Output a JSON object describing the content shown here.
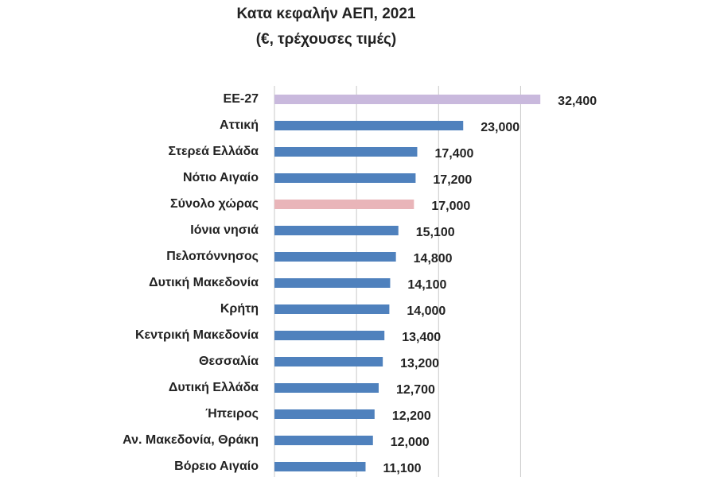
{
  "chart_data": {
    "type": "bar",
    "orientation": "horizontal",
    "title": "Κατα κεφαλήν ΑΕΠ, 2021",
    "subtitle": "(€, τρέχουσες τιμές)",
    "categories": [
      "ΕΕ-27",
      "Αττική",
      "Στερεά Ελλάδα",
      "Νότιο Αιγαίο",
      "Σύνολο χώρας",
      "Ιόνια νησιά",
      "Πελοπόννησος",
      "Δυτική Μακεδονία",
      "Κρήτη",
      "Κεντρική Μακεδονία",
      "Θεσσαλία",
      "Δυτική Ελλάδα",
      "Ήπειρος",
      "Αν. Μακεδονία, Θράκη",
      "Βόρειο Αιγαίο"
    ],
    "values": [
      32400,
      23000,
      17400,
      17200,
      17000,
      15100,
      14800,
      14100,
      14000,
      13400,
      13200,
      12700,
      12200,
      12000,
      11100
    ],
    "value_labels": [
      "32,400",
      "23,000",
      "17,400",
      "17,200",
      "17,000",
      "15,100",
      "14,800",
      "14,100",
      "14,000",
      "13,400",
      "13,200",
      "12,700",
      "12,200",
      "12,000",
      "11,100"
    ],
    "colors": [
      "#c9b9dd",
      "#4f81bd",
      "#4f81bd",
      "#4f81bd",
      "#e9b5b9",
      "#4f81bd",
      "#4f81bd",
      "#4f81bd",
      "#4f81bd",
      "#4f81bd",
      "#4f81bd",
      "#4f81bd",
      "#4f81bd",
      "#4f81bd",
      "#4f81bd"
    ],
    "xlim": [
      0,
      35000
    ],
    "xticks": [
      0,
      10000,
      20000,
      30000
    ],
    "grid": true
  }
}
